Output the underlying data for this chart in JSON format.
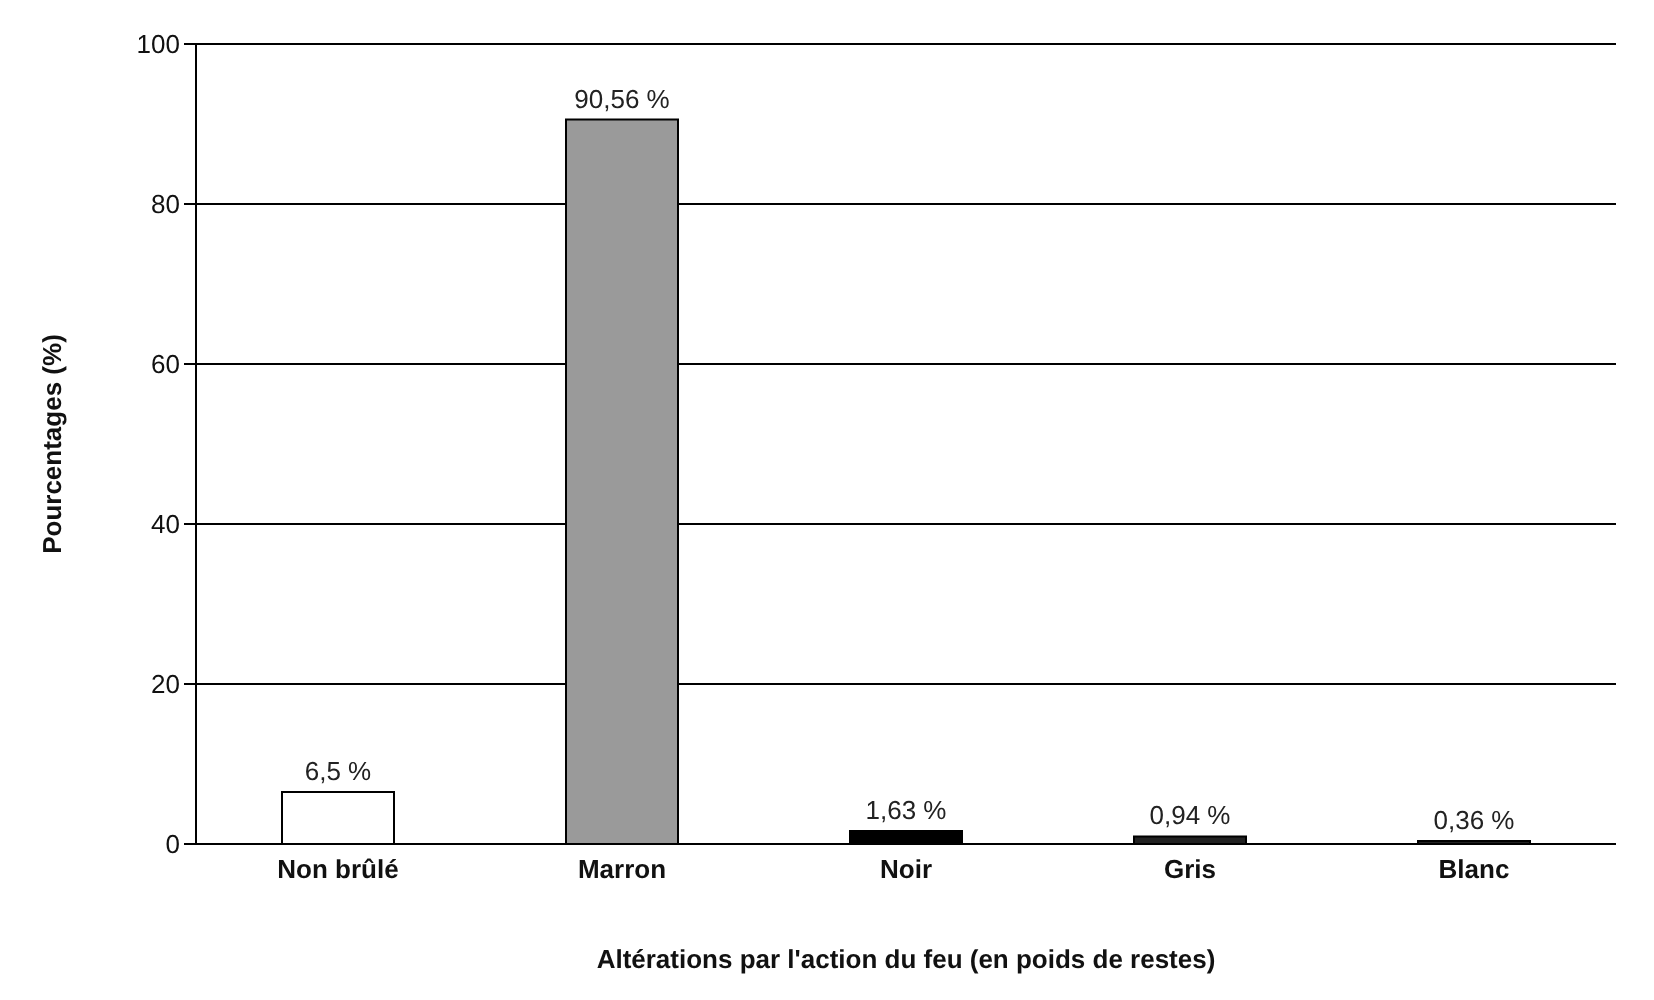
{
  "chart_data": {
    "type": "bar",
    "xlabel": "Altérations par l'action du feu (en poids de restes)",
    "ylabel": "Pourcentages (%)",
    "categories": [
      "Non brûlé",
      "Marron",
      "Noir",
      "Gris",
      "Blanc"
    ],
    "values": [
      6.5,
      90.56,
      1.63,
      0.94,
      0.36
    ],
    "colors": [
      "#ffffff",
      "#9a9a9a",
      "#000000",
      "#222222",
      "#222222"
    ],
    "value_labels": [
      "6,5 %",
      "90,56 %",
      "1,63 %",
      "0,94 %",
      "0,36 %"
    ],
    "ylim": [
      0,
      100
    ],
    "yticks": [
      0,
      20,
      40,
      60,
      80,
      100
    ],
    "grid": "y"
  }
}
